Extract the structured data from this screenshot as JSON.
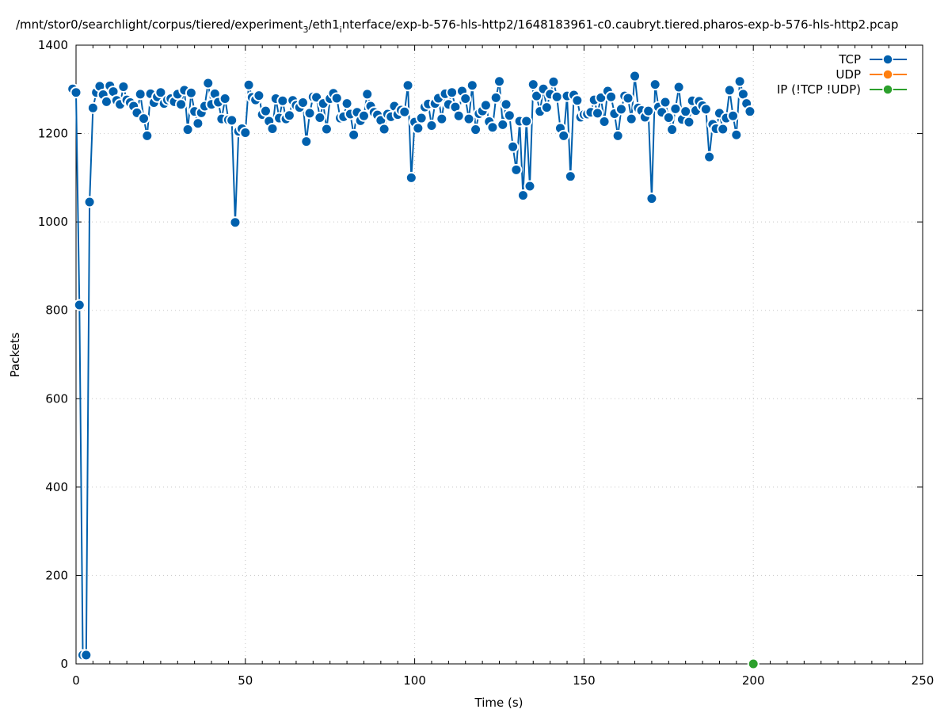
{
  "chart_data": {
    "type": "line",
    "title": "/mnt/stor0/searchlight/corpus/tiered/experiment",
    "title_sub1": "3",
    "title_mid": "/eth1",
    "title_sub2": "i",
    "title_end": "nterface/exp-b-576-hls-http2/1648183961-c0.caubryt.tiered.pharos-exp-b-576-hls-http2.pcap",
    "xlabel": "Time (s)",
    "ylabel": "Packets",
    "xlim": [
      0,
      250
    ],
    "ylim": [
      0,
      1400
    ],
    "xticks": [
      "0",
      "50",
      "100",
      "150",
      "200",
      "250"
    ],
    "yticks": [
      "0",
      "200",
      "400",
      "600",
      "800",
      "1000",
      "1200",
      "1400"
    ],
    "grid": true,
    "legend_position": "top-right",
    "series": [
      {
        "name": "TCP",
        "color": "#0060ad",
        "points": [
          [
            -1,
            1301
          ],
          [
            0,
            1293
          ],
          [
            1,
            812
          ],
          [
            2,
            20
          ],
          [
            3,
            20
          ],
          [
            4,
            1045
          ],
          [
            5,
            1258
          ],
          [
            6,
            1293
          ],
          [
            7,
            1307
          ],
          [
            8,
            1288
          ],
          [
            9,
            1272
          ],
          [
            10,
            1308
          ],
          [
            11,
            1295
          ],
          [
            12,
            1275
          ],
          [
            13,
            1266
          ],
          [
            14,
            1306
          ],
          [
            15,
            1276
          ],
          [
            16,
            1270
          ],
          [
            17,
            1262
          ],
          [
            18,
            1247
          ],
          [
            19,
            1289
          ],
          [
            20,
            1234
          ],
          [
            21,
            1195
          ],
          [
            22,
            1290
          ],
          [
            23,
            1270
          ],
          [
            24,
            1283
          ],
          [
            25,
            1293
          ],
          [
            26,
            1268
          ],
          [
            27,
            1276
          ],
          [
            28,
            1279
          ],
          [
            29,
            1272
          ],
          [
            30,
            1289
          ],
          [
            31,
            1266
          ],
          [
            32,
            1298
          ],
          [
            33,
            1209
          ],
          [
            34,
            1292
          ],
          [
            35,
            1250
          ],
          [
            36,
            1223
          ],
          [
            37,
            1247
          ],
          [
            38,
            1262
          ],
          [
            39,
            1314
          ],
          [
            40,
            1266
          ],
          [
            41,
            1290
          ],
          [
            42,
            1271
          ],
          [
            43,
            1233
          ],
          [
            44,
            1279
          ],
          [
            45,
            1231
          ],
          [
            46,
            1230
          ],
          [
            47,
            999
          ],
          [
            48,
            1205
          ],
          [
            49,
            1211
          ],
          [
            50,
            1202
          ],
          [
            51,
            1310
          ],
          [
            52,
            1282
          ],
          [
            53,
            1276
          ],
          [
            54,
            1286
          ],
          [
            55,
            1243
          ],
          [
            56,
            1251
          ],
          [
            57,
            1228
          ],
          [
            58,
            1211
          ],
          [
            59,
            1279
          ],
          [
            60,
            1235
          ],
          [
            61,
            1274
          ],
          [
            62,
            1233
          ],
          [
            63,
            1241
          ],
          [
            64,
            1275
          ],
          [
            65,
            1264
          ],
          [
            66,
            1259
          ],
          [
            67,
            1270
          ],
          [
            68,
            1182
          ],
          [
            69,
            1246
          ],
          [
            70,
            1283
          ],
          [
            71,
            1282
          ],
          [
            72,
            1236
          ],
          [
            73,
            1268
          ],
          [
            74,
            1210
          ],
          [
            75,
            1279
          ],
          [
            76,
            1291
          ],
          [
            77,
            1280
          ],
          [
            78,
            1235
          ],
          [
            79,
            1238
          ],
          [
            80,
            1268
          ],
          [
            81,
            1244
          ],
          [
            82,
            1197
          ],
          [
            83,
            1248
          ],
          [
            84,
            1229
          ],
          [
            85,
            1240
          ],
          [
            86,
            1289
          ],
          [
            87,
            1262
          ],
          [
            88,
            1248
          ],
          [
            89,
            1242
          ],
          [
            90,
            1230
          ],
          [
            91,
            1210
          ],
          [
            92,
            1244
          ],
          [
            93,
            1238
          ],
          [
            94,
            1262
          ],
          [
            95,
            1243
          ],
          [
            96,
            1253
          ],
          [
            97,
            1249
          ],
          [
            98,
            1309
          ],
          [
            99,
            1100
          ],
          [
            100,
            1226
          ],
          [
            101,
            1212
          ],
          [
            102,
            1235
          ],
          [
            103,
            1260
          ],
          [
            104,
            1267
          ],
          [
            105,
            1218
          ],
          [
            106,
            1268
          ],
          [
            107,
            1280
          ],
          [
            108,
            1233
          ],
          [
            109,
            1290
          ],
          [
            110,
            1266
          ],
          [
            111,
            1293
          ],
          [
            112,
            1260
          ],
          [
            113,
            1240
          ],
          [
            114,
            1296
          ],
          [
            115,
            1279
          ],
          [
            116,
            1233
          ],
          [
            117,
            1309
          ],
          [
            118,
            1209
          ],
          [
            119,
            1245
          ],
          [
            120,
            1251
          ],
          [
            121,
            1264
          ],
          [
            122,
            1227
          ],
          [
            123,
            1214
          ],
          [
            124,
            1281
          ],
          [
            125,
            1318
          ],
          [
            126,
            1220
          ],
          [
            127,
            1266
          ],
          [
            128,
            1241
          ],
          [
            129,
            1170
          ],
          [
            130,
            1118
          ],
          [
            131,
            1228
          ],
          [
            132,
            1060
          ],
          [
            133,
            1228
          ],
          [
            134,
            1081
          ],
          [
            135,
            1311
          ],
          [
            136,
            1285
          ],
          [
            137,
            1250
          ],
          [
            138,
            1301
          ],
          [
            139,
            1259
          ],
          [
            140,
            1289
          ],
          [
            141,
            1317
          ],
          [
            142,
            1283
          ],
          [
            143,
            1212
          ],
          [
            144,
            1195
          ],
          [
            145,
            1285
          ],
          [
            146,
            1103
          ],
          [
            147,
            1287
          ],
          [
            148,
            1275
          ],
          [
            149,
            1237
          ],
          [
            150,
            1243
          ],
          [
            151,
            1244
          ],
          [
            152,
            1248
          ],
          [
            153,
            1276
          ],
          [
            154,
            1246
          ],
          [
            155,
            1281
          ],
          [
            156,
            1227
          ],
          [
            157,
            1296
          ],
          [
            158,
            1283
          ],
          [
            159,
            1245
          ],
          [
            160,
            1195
          ],
          [
            161,
            1255
          ],
          [
            162,
            1285
          ],
          [
            163,
            1280
          ],
          [
            164,
            1233
          ],
          [
            165,
            1330
          ],
          [
            166,
            1258
          ],
          [
            167,
            1252
          ],
          [
            168,
            1237
          ],
          [
            169,
            1251
          ],
          [
            170,
            1053
          ],
          [
            171,
            1311
          ],
          [
            172,
            1260
          ],
          [
            173,
            1248
          ],
          [
            174,
            1271
          ],
          [
            175,
            1236
          ],
          [
            176,
            1209
          ],
          [
            177,
            1256
          ],
          [
            178,
            1305
          ],
          [
            179,
            1232
          ],
          [
            180,
            1250
          ],
          [
            181,
            1226
          ],
          [
            182,
            1274
          ],
          [
            183,
            1252
          ],
          [
            184,
            1273
          ],
          [
            185,
            1263
          ],
          [
            186,
            1255
          ],
          [
            187,
            1147
          ],
          [
            188,
            1221
          ],
          [
            189,
            1211
          ],
          [
            190,
            1246
          ],
          [
            191,
            1210
          ],
          [
            192,
            1235
          ],
          [
            193,
            1298
          ],
          [
            194,
            1240
          ],
          [
            195,
            1197
          ],
          [
            196,
            1318
          ],
          [
            197,
            1289
          ],
          [
            198,
            1268
          ],
          [
            199,
            1250
          ]
        ]
      },
      {
        "name": "UDP",
        "color": "#ff7f0e",
        "points": []
      },
      {
        "name": "IP (!TCP  !UDP)",
        "color": "#2ca02c",
        "points": [
          [
            200,
            0
          ]
        ]
      }
    ]
  }
}
